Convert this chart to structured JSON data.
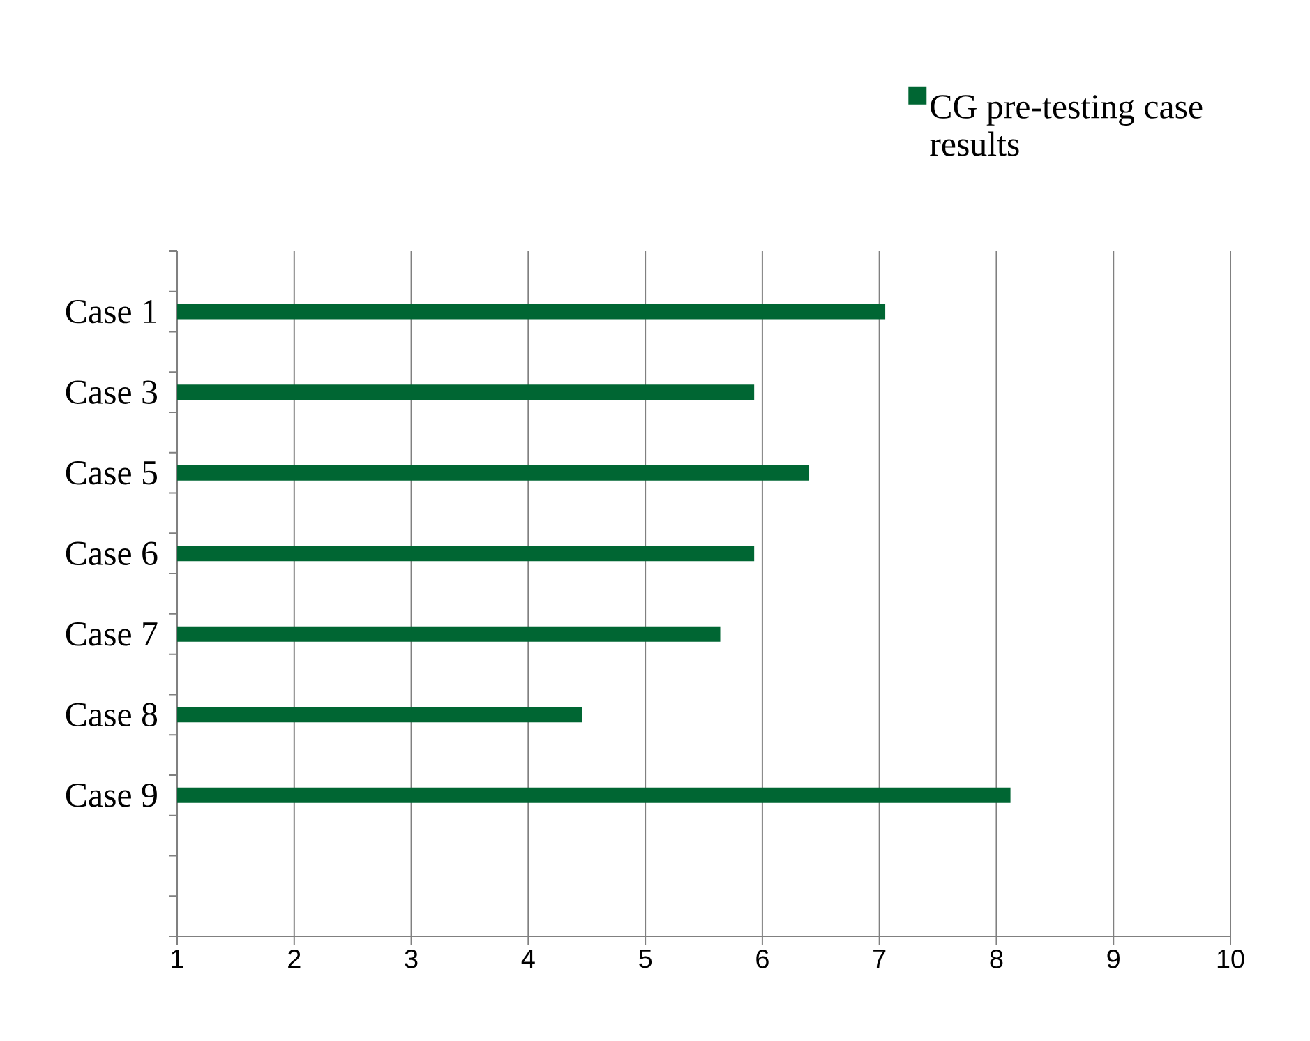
{
  "chart_data": {
    "type": "bar",
    "orientation": "horizontal",
    "categories": [
      null,
      "Case 1",
      null,
      "Case 3",
      null,
      "Case 5",
      null,
      "Case 6",
      null,
      "Case 7",
      null,
      "Case 8",
      null,
      "Case 9",
      null,
      null,
      null
    ],
    "series": [
      {
        "name": "CG pre-testing case results",
        "color": "#006633",
        "values": [
          null,
          7.05,
          null,
          5.93,
          null,
          6.4,
          null,
          5.93,
          null,
          5.64,
          null,
          4.46,
          null,
          8.12,
          null,
          null,
          null
        ]
      }
    ],
    "xlim": [
      1,
      10
    ],
    "xticks": [
      1,
      2,
      3,
      4,
      5,
      6,
      7,
      8,
      9,
      10
    ],
    "grid": "x",
    "legend": "top right"
  }
}
